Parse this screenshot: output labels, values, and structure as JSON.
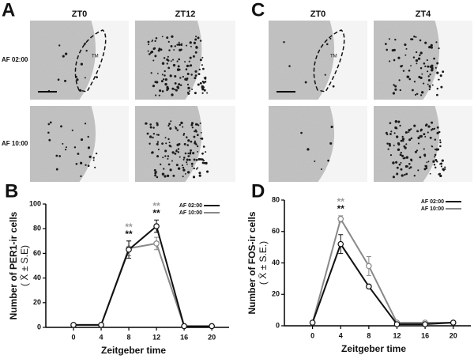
{
  "panels": [
    {
      "label": "A",
      "columns": [
        "ZT0",
        "ZT12"
      ],
      "rows": [
        "AF 02:00",
        "AF 10:00"
      ],
      "region": "TM"
    },
    {
      "label": "C",
      "columns": [
        "ZT0",
        "ZT4"
      ],
      "region": "TM"
    }
  ],
  "chart_data": [
    {
      "type": "line",
      "panel": "B",
      "y_label": [
        "Number of PER1-ir cells",
        "( X̄ ± S.E)"
      ],
      "x_label": "Zeitgeber time",
      "x": [
        0,
        4,
        8,
        12,
        16,
        20
      ],
      "xlim": [
        -4,
        22.5
      ],
      "xticks": [
        0,
        4,
        8,
        12,
        16,
        20
      ],
      "ylim": [
        0,
        100
      ],
      "yticks": [
        0,
        20,
        40,
        60,
        80,
        100
      ],
      "legend": "upper right",
      "series": [
        {
          "name": "AF 02:00",
          "color": "#111111",
          "values": [
            2,
            2,
            63,
            82,
            1,
            1
          ],
          "errors": [
            0,
            0,
            7,
            5,
            0,
            0
          ]
        },
        {
          "name": "AF 10:00",
          "color": "#888888",
          "values": [
            2,
            2,
            64,
            68,
            1,
            1
          ],
          "errors": [
            0,
            0,
            6,
            5,
            0,
            0
          ]
        }
      ],
      "annotations": [
        {
          "text": "**",
          "x": 8,
          "color": "#999999"
        },
        {
          "text": "**",
          "x": 8,
          "color": "#111111"
        },
        {
          "text": "**",
          "x": 12,
          "color": "#999999"
        },
        {
          "text": "**",
          "x": 12,
          "color": "#111111"
        }
      ]
    },
    {
      "type": "line",
      "panel": "D",
      "y_label": [
        "Number of FOS-ir cells",
        "( X̄ ± S.E.)"
      ],
      "x_label": "Zeitgeber time",
      "x": [
        0,
        4,
        8,
        12,
        16,
        20
      ],
      "xlim": [
        -4,
        22.5
      ],
      "xticks": [
        0,
        4,
        8,
        12,
        16,
        20
      ],
      "ylim": [
        0,
        80
      ],
      "yticks": [
        0,
        20,
        40,
        60,
        80
      ],
      "legend": "upper right",
      "series": [
        {
          "name": "AF 02:00",
          "color": "#111111",
          "values": [
            2,
            52,
            25,
            1,
            1,
            2
          ],
          "errors": [
            0,
            6,
            1,
            0,
            0,
            0
          ]
        },
        {
          "name": "AF 10:00",
          "color": "#888888",
          "values": [
            2,
            68,
            38,
            2,
            2,
            2
          ],
          "errors": [
            0,
            2,
            6,
            0,
            0,
            0
          ]
        }
      ],
      "annotations": [
        {
          "text": "**",
          "x": 4,
          "color": "#999999"
        },
        {
          "text": "**",
          "x": 4,
          "color": "#111111"
        }
      ]
    }
  ]
}
